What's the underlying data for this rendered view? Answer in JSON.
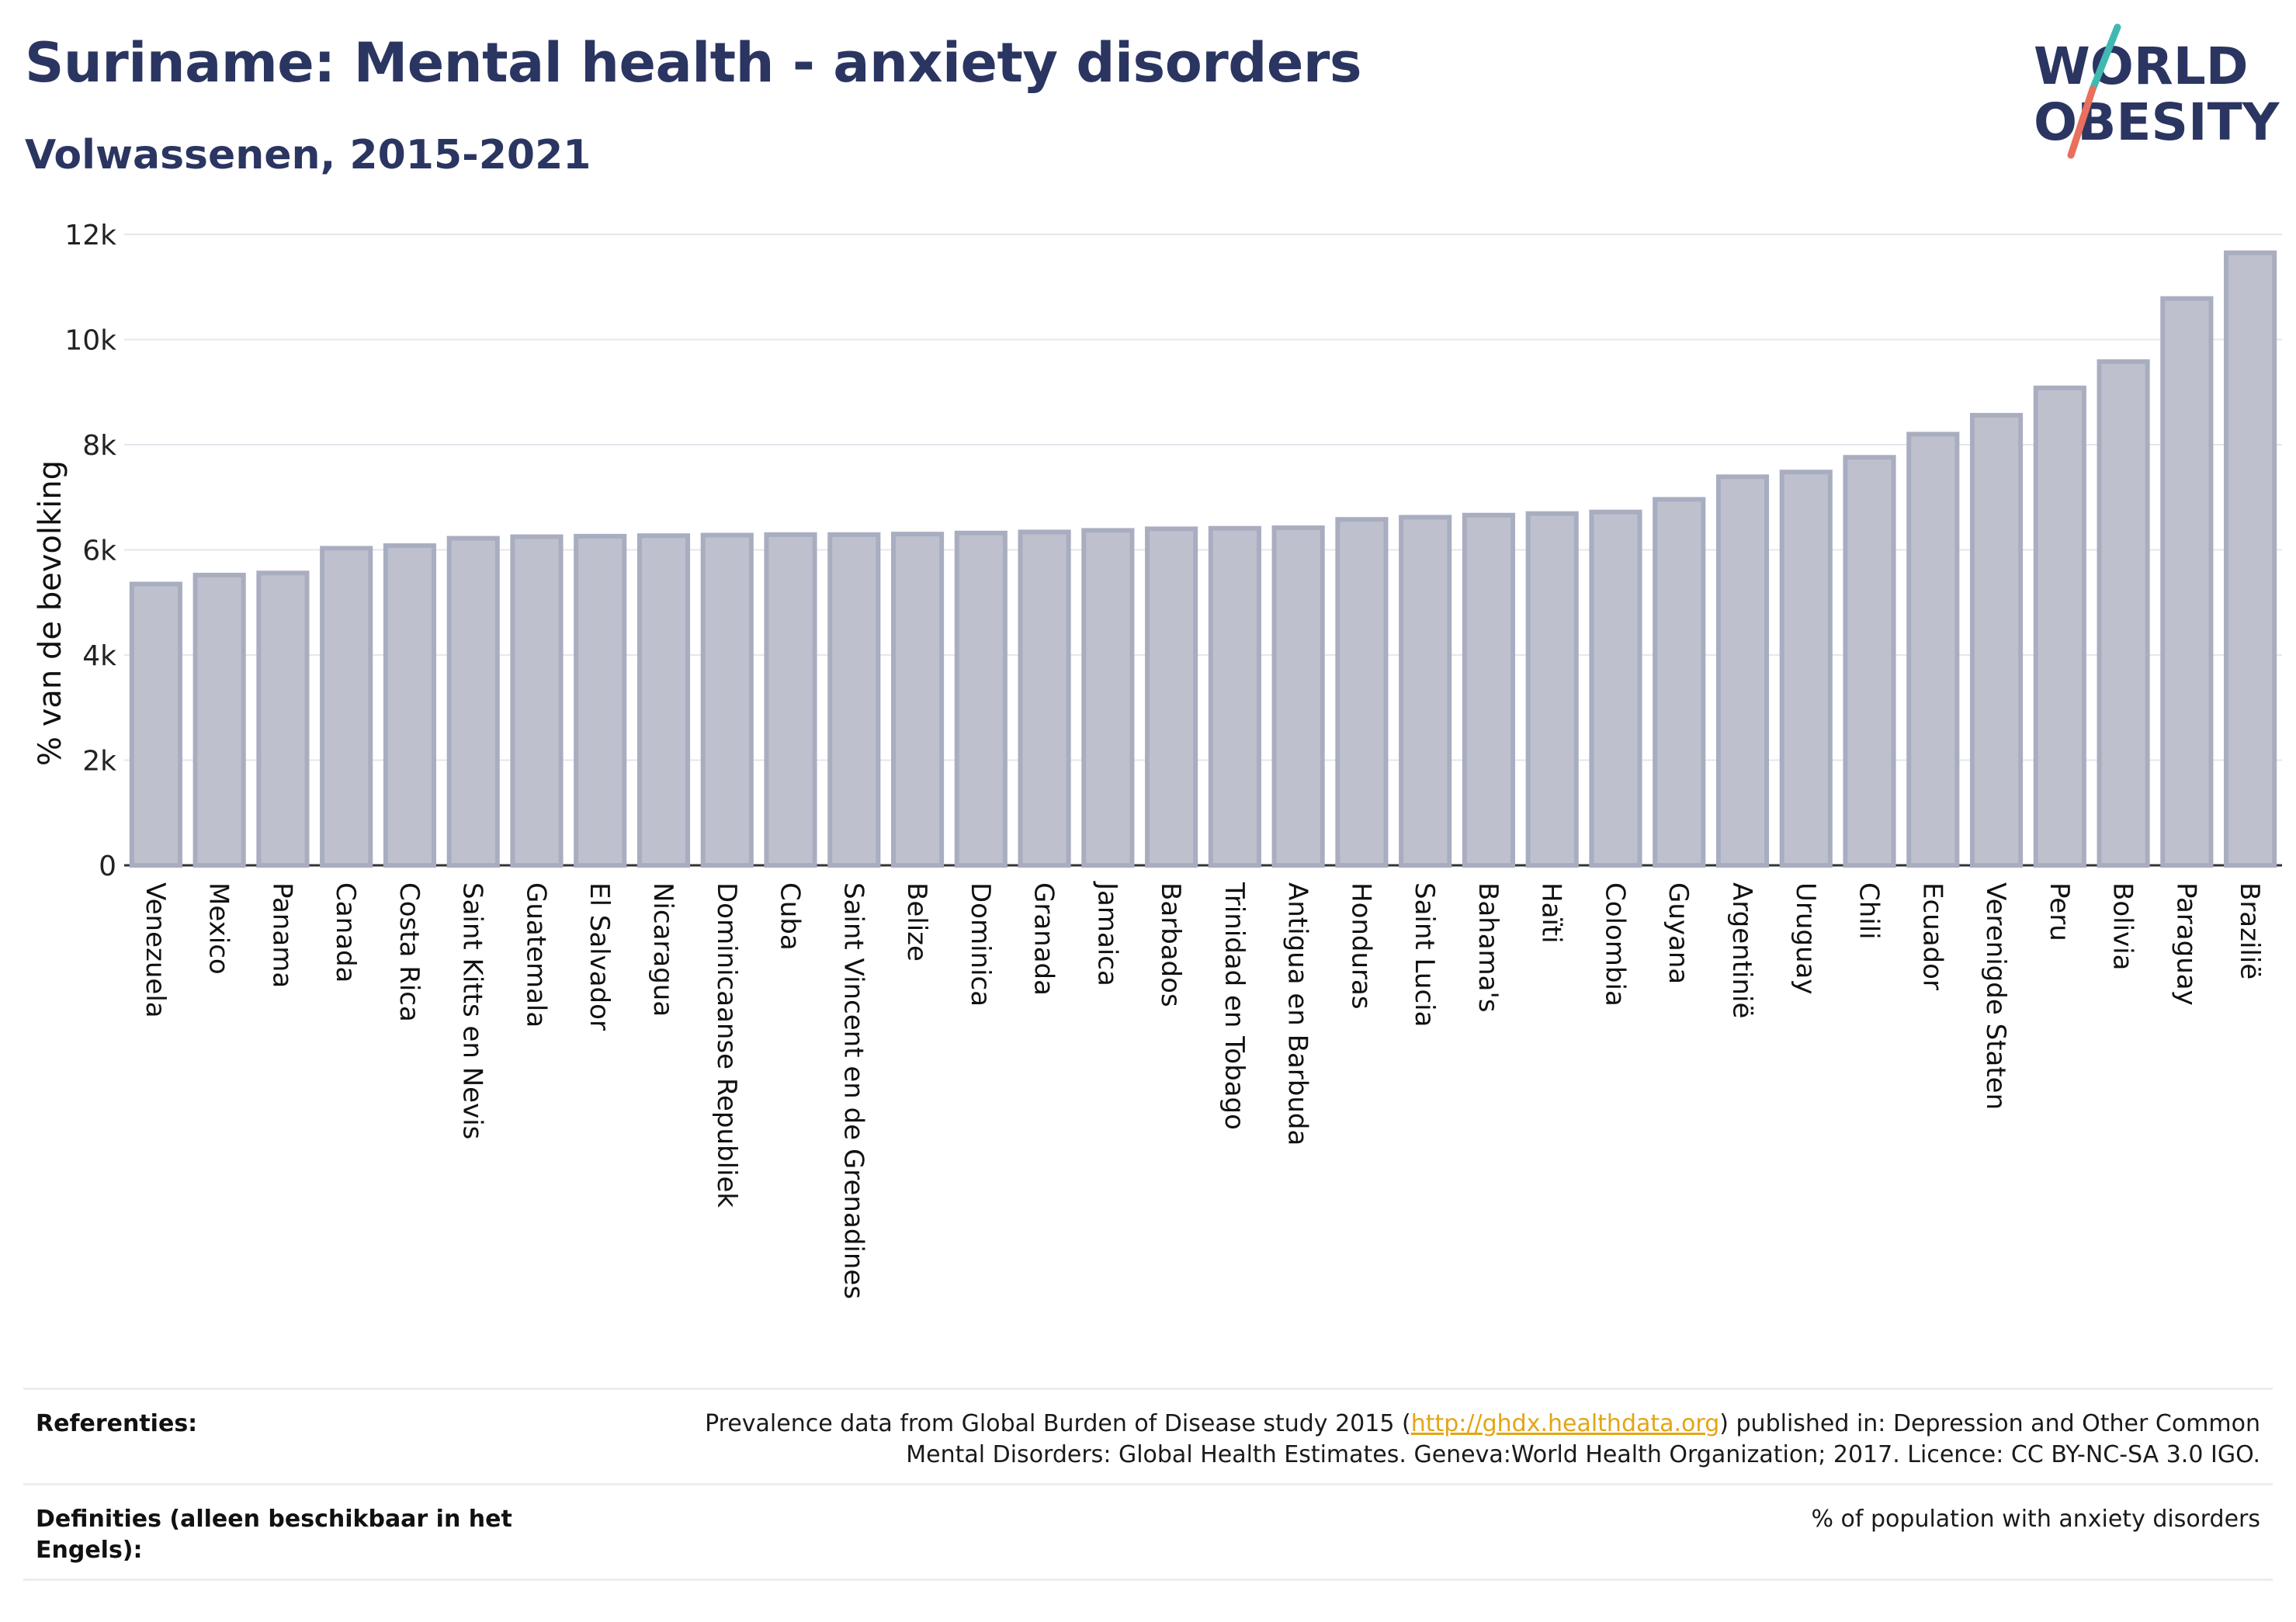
{
  "header": {
    "title": "Suriname: Mental health - anxiety disorders",
    "subtitle": "Volwassenen, 2015-2021"
  },
  "logo": {
    "line1": "WORLD",
    "line2": "OBESITY",
    "colors": {
      "text": "#2b3561",
      "slash_top": "#3fb9b1",
      "slash_bottom": "#e8705c"
    }
  },
  "chart_data": {
    "type": "bar",
    "ylabel": "% van de bevolking",
    "xlabel": "",
    "ylim": [
      0,
      12000
    ],
    "yticks": [
      0,
      2000,
      4000,
      6000,
      8000,
      10000,
      12000
    ],
    "ytick_labels": [
      "0",
      "2k",
      "4k",
      "6k",
      "8k",
      "10k",
      "12k"
    ],
    "grid": true,
    "bar_fill": "#bec1cd",
    "bar_stroke": "#a9adc0",
    "categories": [
      "Venezuela",
      "Mexico",
      "Panama",
      "Canada",
      "Costa Rica",
      "Saint Kitts en Nevis",
      "Guatemala",
      "El Salvador",
      "Nicaragua",
      "Dominicaanse Republiek",
      "Cuba",
      "Saint Vincent en de Grenadines",
      "Belize",
      "Dominica",
      "Granada",
      "Jamaica",
      "Barbados",
      "Trinidad en Tobago",
      "Antigua en Barbuda",
      "Honduras",
      "Saint Lucia",
      "Bahama's",
      "Haïti",
      "Colombia",
      "Guyana",
      "Argentinië",
      "Uruguay",
      "Chili",
      "Ecuador",
      "Verenigde Staten",
      "Peru",
      "Bolivia",
      "Paraguay",
      "Brazilië"
    ],
    "values": [
      5350,
      5520,
      5560,
      6030,
      6080,
      6220,
      6250,
      6260,
      6270,
      6280,
      6290,
      6290,
      6300,
      6320,
      6340,
      6370,
      6400,
      6410,
      6420,
      6580,
      6620,
      6660,
      6690,
      6720,
      6960,
      7390,
      7480,
      7760,
      8200,
      8560,
      9080,
      9580,
      10780,
      11650
    ]
  },
  "footer": {
    "references_label": "Referenties:",
    "references_pre": "Prevalence data from Global Burden of Disease study 2015 (",
    "references_link": "http://ghdx.healthdata.org",
    "references_post": ") published in: Depression and Other Common Mental Disorders: Global Health Estimates. Geneva:World Health Organization; 2017. Licence: CC BY-NC-SA 3.0 IGO.",
    "definitions_label": "Definities (alleen beschikbaar in het Engels):",
    "definitions_value": "% of population with anxiety disorders"
  }
}
